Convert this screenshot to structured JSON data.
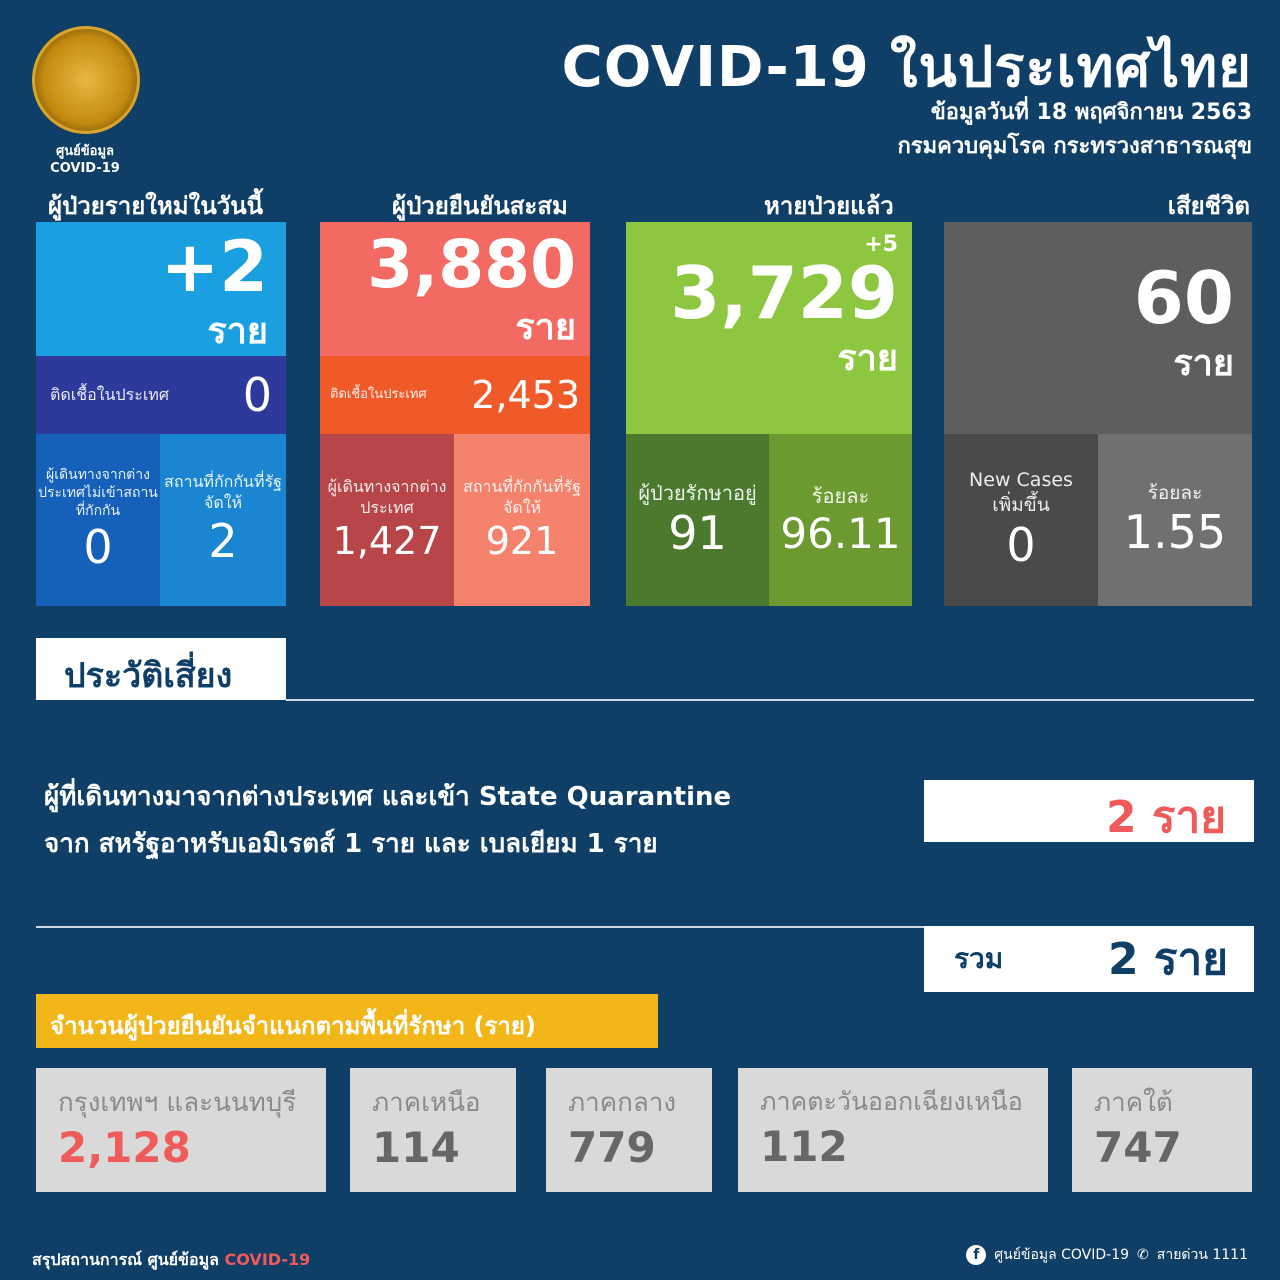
{
  "header": {
    "title": "COVID-19 ในประเทศไทย",
    "date": "ข้อมูลวันที่ 18 พฤศจิกายน 2563",
    "source": "กรมควบคุมโรค กระทรวงสาธารณสุข",
    "logo_text": [
      "ศูนย์ข้อมูล",
      "COVID-19"
    ]
  },
  "unit": "ราย",
  "new_cases": {
    "heading": "ผู้ป่วยรายใหม่ในวันนี้",
    "value": "+2",
    "local_label": "ติดเชื้อในประเทศ",
    "local": "0",
    "abroad_label": "ผู้เดินทางจากต่างประเทศไม่เข้าสถานที่กักกัน",
    "abroad": "0",
    "quarantine_label": "สถานที่กักกันที่รัฐจัดให้",
    "quarantine": "2"
  },
  "cumulative": {
    "heading": "ผู้ป่วยยืนยันสะสม",
    "value": "3,880",
    "local_label": "ติดเชื้อในประเทศ",
    "local": "2,453",
    "abroad_label": "ผู้เดินทางจากต่างประเทศ",
    "abroad": "1,427",
    "quarantine_label": "สถานที่กักกันที่รัฐจัดให้",
    "quarantine": "921"
  },
  "recovered": {
    "heading": "หายป่วยแล้ว",
    "value": "3,729",
    "delta": "+5",
    "treating_label": "ผู้ป่วยรักษาอยู่",
    "treating": "91",
    "percent_label": "ร้อยละ",
    "percent": "96.11"
  },
  "deaths": {
    "heading": "เสียชีวิต",
    "value": "60",
    "new_label": "New Cases เพิ่มขึ้น",
    "new": "0",
    "percent_label": "ร้อยละ",
    "percent": "1.55"
  },
  "risk": {
    "heading": "ประวัติเสี่ยง",
    "line1": "ผู้ที่เดินทางมาจากต่างประเทศ และเข้า State Quarantine",
    "line2": "จาก สหรัฐอาหรับเอมิเรตส์ 1 ราย และ เบลเยียม 1 ราย",
    "count": "2 ราย",
    "total_label": "รวม",
    "total": "2 ราย"
  },
  "regions": {
    "heading": "จำนวนผู้ป่วยยืนยันจำแนกตามพื้นที่รักษา (ราย)",
    "items": [
      {
        "name": "กรุงเทพฯ และนนทบุรี",
        "value": "2,128"
      },
      {
        "name": "ภาคเหนือ",
        "value": "114"
      },
      {
        "name": "ภาคกลาง",
        "value": "779"
      },
      {
        "name": "ภาคตะวันออกเฉียงเหนือ",
        "value": "112"
      },
      {
        "name": "ภาคใต้",
        "value": "747"
      }
    ]
  },
  "footer": {
    "left": "สรุปสถานการณ์ ศูนย์ข้อมูล",
    "left_accent": "COVID-19",
    "facebook": "ศูนย์ข้อมูล COVID-19",
    "hotline": "สายด่วน 1111"
  },
  "colors": {
    "background": "#0f3e66",
    "blue": "#1aa0e0",
    "red": "#f26a62",
    "green": "#8dc63f",
    "gray": "#5e5e5e",
    "yellow": "#f2b619",
    "accent_red": "#ef5a5a"
  }
}
